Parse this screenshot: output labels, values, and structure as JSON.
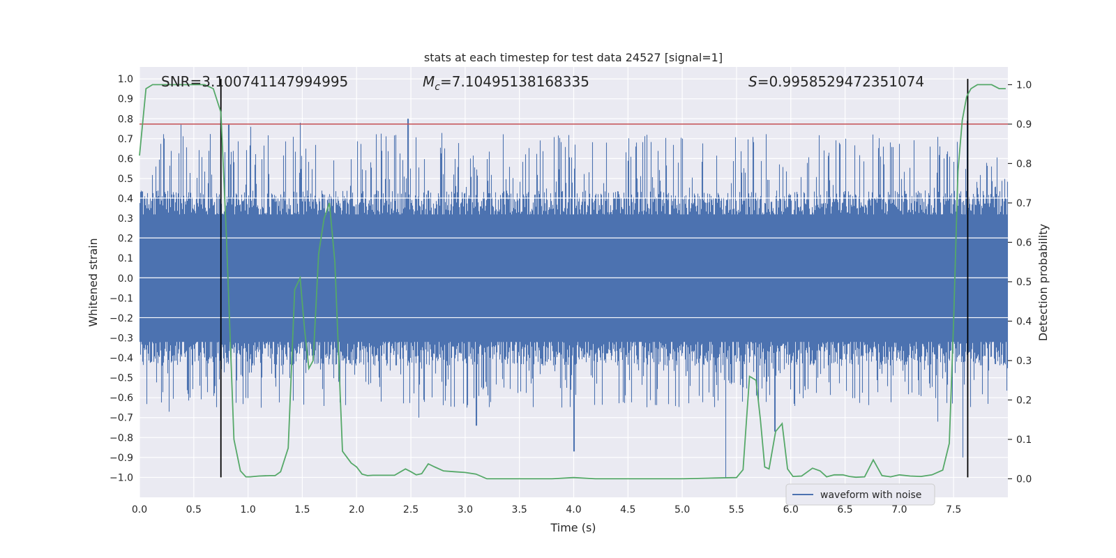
{
  "chart_data": {
    "type": "line",
    "title": "stats at each timestep for test data 24527 [signal=1]",
    "xlabel": "Time (s)",
    "ylabel": "Whitened strain",
    "y2label": "Detection probability",
    "xlim": [
      0.0,
      8.0
    ],
    "ylim": [
      -1.1,
      1.06
    ],
    "y2lim": [
      -0.047,
      1.045
    ],
    "xticks": [
      "0.0",
      "0.5",
      "1.0",
      "1.5",
      "2.0",
      "2.5",
      "3.0",
      "3.5",
      "4.0",
      "4.5",
      "5.0",
      "5.5",
      "6.0",
      "6.5",
      "7.0",
      "7.5"
    ],
    "xtick_values": [
      0,
      0.5,
      1,
      1.5,
      2,
      2.5,
      3,
      3.5,
      4,
      4.5,
      5,
      5.5,
      6,
      6.5,
      7,
      7.5
    ],
    "yticks": [
      "−1.0",
      "−0.9",
      "−0.8",
      "−0.7",
      "−0.6",
      "−0.5",
      "−0.4",
      "−0.3",
      "−0.2",
      "−0.1",
      "0.0",
      "0.1",
      "0.2",
      "0.3",
      "0.4",
      "0.5",
      "0.6",
      "0.7",
      "0.8",
      "0.9",
      "1.0"
    ],
    "ytick_values": [
      -1,
      -0.9,
      -0.8,
      -0.7,
      -0.6,
      -0.5,
      -0.4,
      -0.3,
      -0.2,
      -0.1,
      0,
      0.1,
      0.2,
      0.3,
      0.4,
      0.5,
      0.6,
      0.7,
      0.8,
      0.9,
      1.0
    ],
    "y2ticks": [
      "0.0",
      "0.1",
      "0.2",
      "0.3",
      "0.4",
      "0.5",
      "0.6",
      "0.7",
      "0.8",
      "0.9",
      "1.0"
    ],
    "y2tick_values": [
      0,
      0.1,
      0.2,
      0.3,
      0.4,
      0.5,
      0.6,
      0.7,
      0.8,
      0.9,
      1.0
    ],
    "annotations": {
      "snr": "SNR=3.100741147994995",
      "mc_symbol": "M",
      "mc_sub": "c",
      "mc_value": "=7.10495138168335",
      "s_symbol": "S",
      "s_value": "=0.9958529472351074"
    },
    "threshold": {
      "axis": "y2",
      "value": 0.9,
      "color": "#c44e52"
    },
    "vlines": [
      {
        "x": 0.75,
        "ymin": -1.0,
        "ymax": 1.0,
        "color": "#000000"
      },
      {
        "x": 7.63,
        "ymin": -1.0,
        "ymax": 1.0,
        "color": "#000000"
      }
    ],
    "waveform": {
      "name": "waveform with noise",
      "color": "#4c72b0",
      "x_range": [
        0.0,
        8.0
      ],
      "envelope_core": 0.4,
      "peaks_high": [
        [
          0.38,
          0.77
        ],
        [
          0.82,
          0.77
        ],
        [
          1.02,
          0.76
        ],
        [
          1.48,
          0.78
        ],
        [
          2.47,
          0.8
        ],
        [
          7.62,
          0.79
        ],
        [
          5.0,
          0.7
        ],
        [
          6.85,
          0.66
        ],
        [
          7.28,
          0.66
        ],
        [
          4.3,
          0.68
        ]
      ],
      "peaks_low": [
        [
          4.0,
          -0.87
        ],
        [
          5.4,
          -1.0
        ],
        [
          7.58,
          -0.9
        ],
        [
          1.12,
          -0.65
        ],
        [
          3.1,
          -0.74
        ],
        [
          0.27,
          -0.67
        ],
        [
          7.35,
          -0.72
        ],
        [
          2.57,
          -0.7
        ],
        [
          5.85,
          -0.77
        ]
      ]
    },
    "series": [
      {
        "name": "detection probability",
        "axis": "y2",
        "color": "#55a868",
        "x": [
          0.0,
          0.06,
          0.12,
          0.2,
          0.3,
          0.4,
          0.5,
          0.6,
          0.68,
          0.75,
          0.8,
          0.87,
          0.93,
          0.98,
          1.02,
          1.1,
          1.2,
          1.25,
          1.3,
          1.37,
          1.43,
          1.48,
          1.52,
          1.56,
          1.6,
          1.65,
          1.7,
          1.75,
          1.8,
          1.87,
          1.95,
          2.0,
          2.05,
          2.1,
          2.15,
          2.25,
          2.35,
          2.45,
          2.5,
          2.55,
          2.6,
          2.66,
          2.72,
          2.8,
          2.9,
          3.0,
          3.1,
          3.2,
          3.4,
          3.6,
          3.8,
          4.0,
          4.2,
          4.5,
          5.0,
          5.3,
          5.5,
          5.56,
          5.62,
          5.68,
          5.72,
          5.76,
          5.8,
          5.86,
          5.92,
          5.97,
          6.02,
          6.1,
          6.2,
          6.27,
          6.33,
          6.4,
          6.48,
          6.54,
          6.6,
          6.68,
          6.76,
          6.84,
          6.92,
          7.0,
          7.1,
          7.2,
          7.3,
          7.4,
          7.46,
          7.5,
          7.54,
          7.58,
          7.62,
          7.66,
          7.72,
          7.78,
          7.85,
          7.92,
          7.98
        ],
        "y": [
          0.82,
          0.99,
          1.0,
          1.0,
          1.0,
          1.0,
          1.0,
          1.0,
          0.99,
          0.93,
          0.62,
          0.1,
          0.02,
          0.005,
          0.005,
          0.007,
          0.008,
          0.008,
          0.018,
          0.078,
          0.48,
          0.51,
          0.38,
          0.28,
          0.3,
          0.57,
          0.66,
          0.7,
          0.55,
          0.07,
          0.04,
          0.03,
          0.012,
          0.008,
          0.009,
          0.009,
          0.009,
          0.025,
          0.018,
          0.01,
          0.013,
          0.038,
          0.03,
          0.02,
          0.018,
          0.016,
          0.012,
          0.0,
          0.0,
          0.0,
          0.0,
          0.003,
          0.0,
          0.0,
          0.0,
          0.002,
          0.003,
          0.023,
          0.26,
          0.25,
          0.15,
          0.03,
          0.025,
          0.12,
          0.14,
          0.025,
          0.006,
          0.007,
          0.027,
          0.02,
          0.005,
          0.01,
          0.01,
          0.006,
          0.004,
          0.005,
          0.048,
          0.008,
          0.005,
          0.01,
          0.007,
          0.006,
          0.01,
          0.022,
          0.09,
          0.4,
          0.78,
          0.91,
          0.97,
          0.99,
          1.0,
          1.0,
          1.0,
          0.99,
          0.99
        ]
      }
    ],
    "legend": {
      "label": "waveform with noise",
      "placement": "lower-right"
    }
  }
}
